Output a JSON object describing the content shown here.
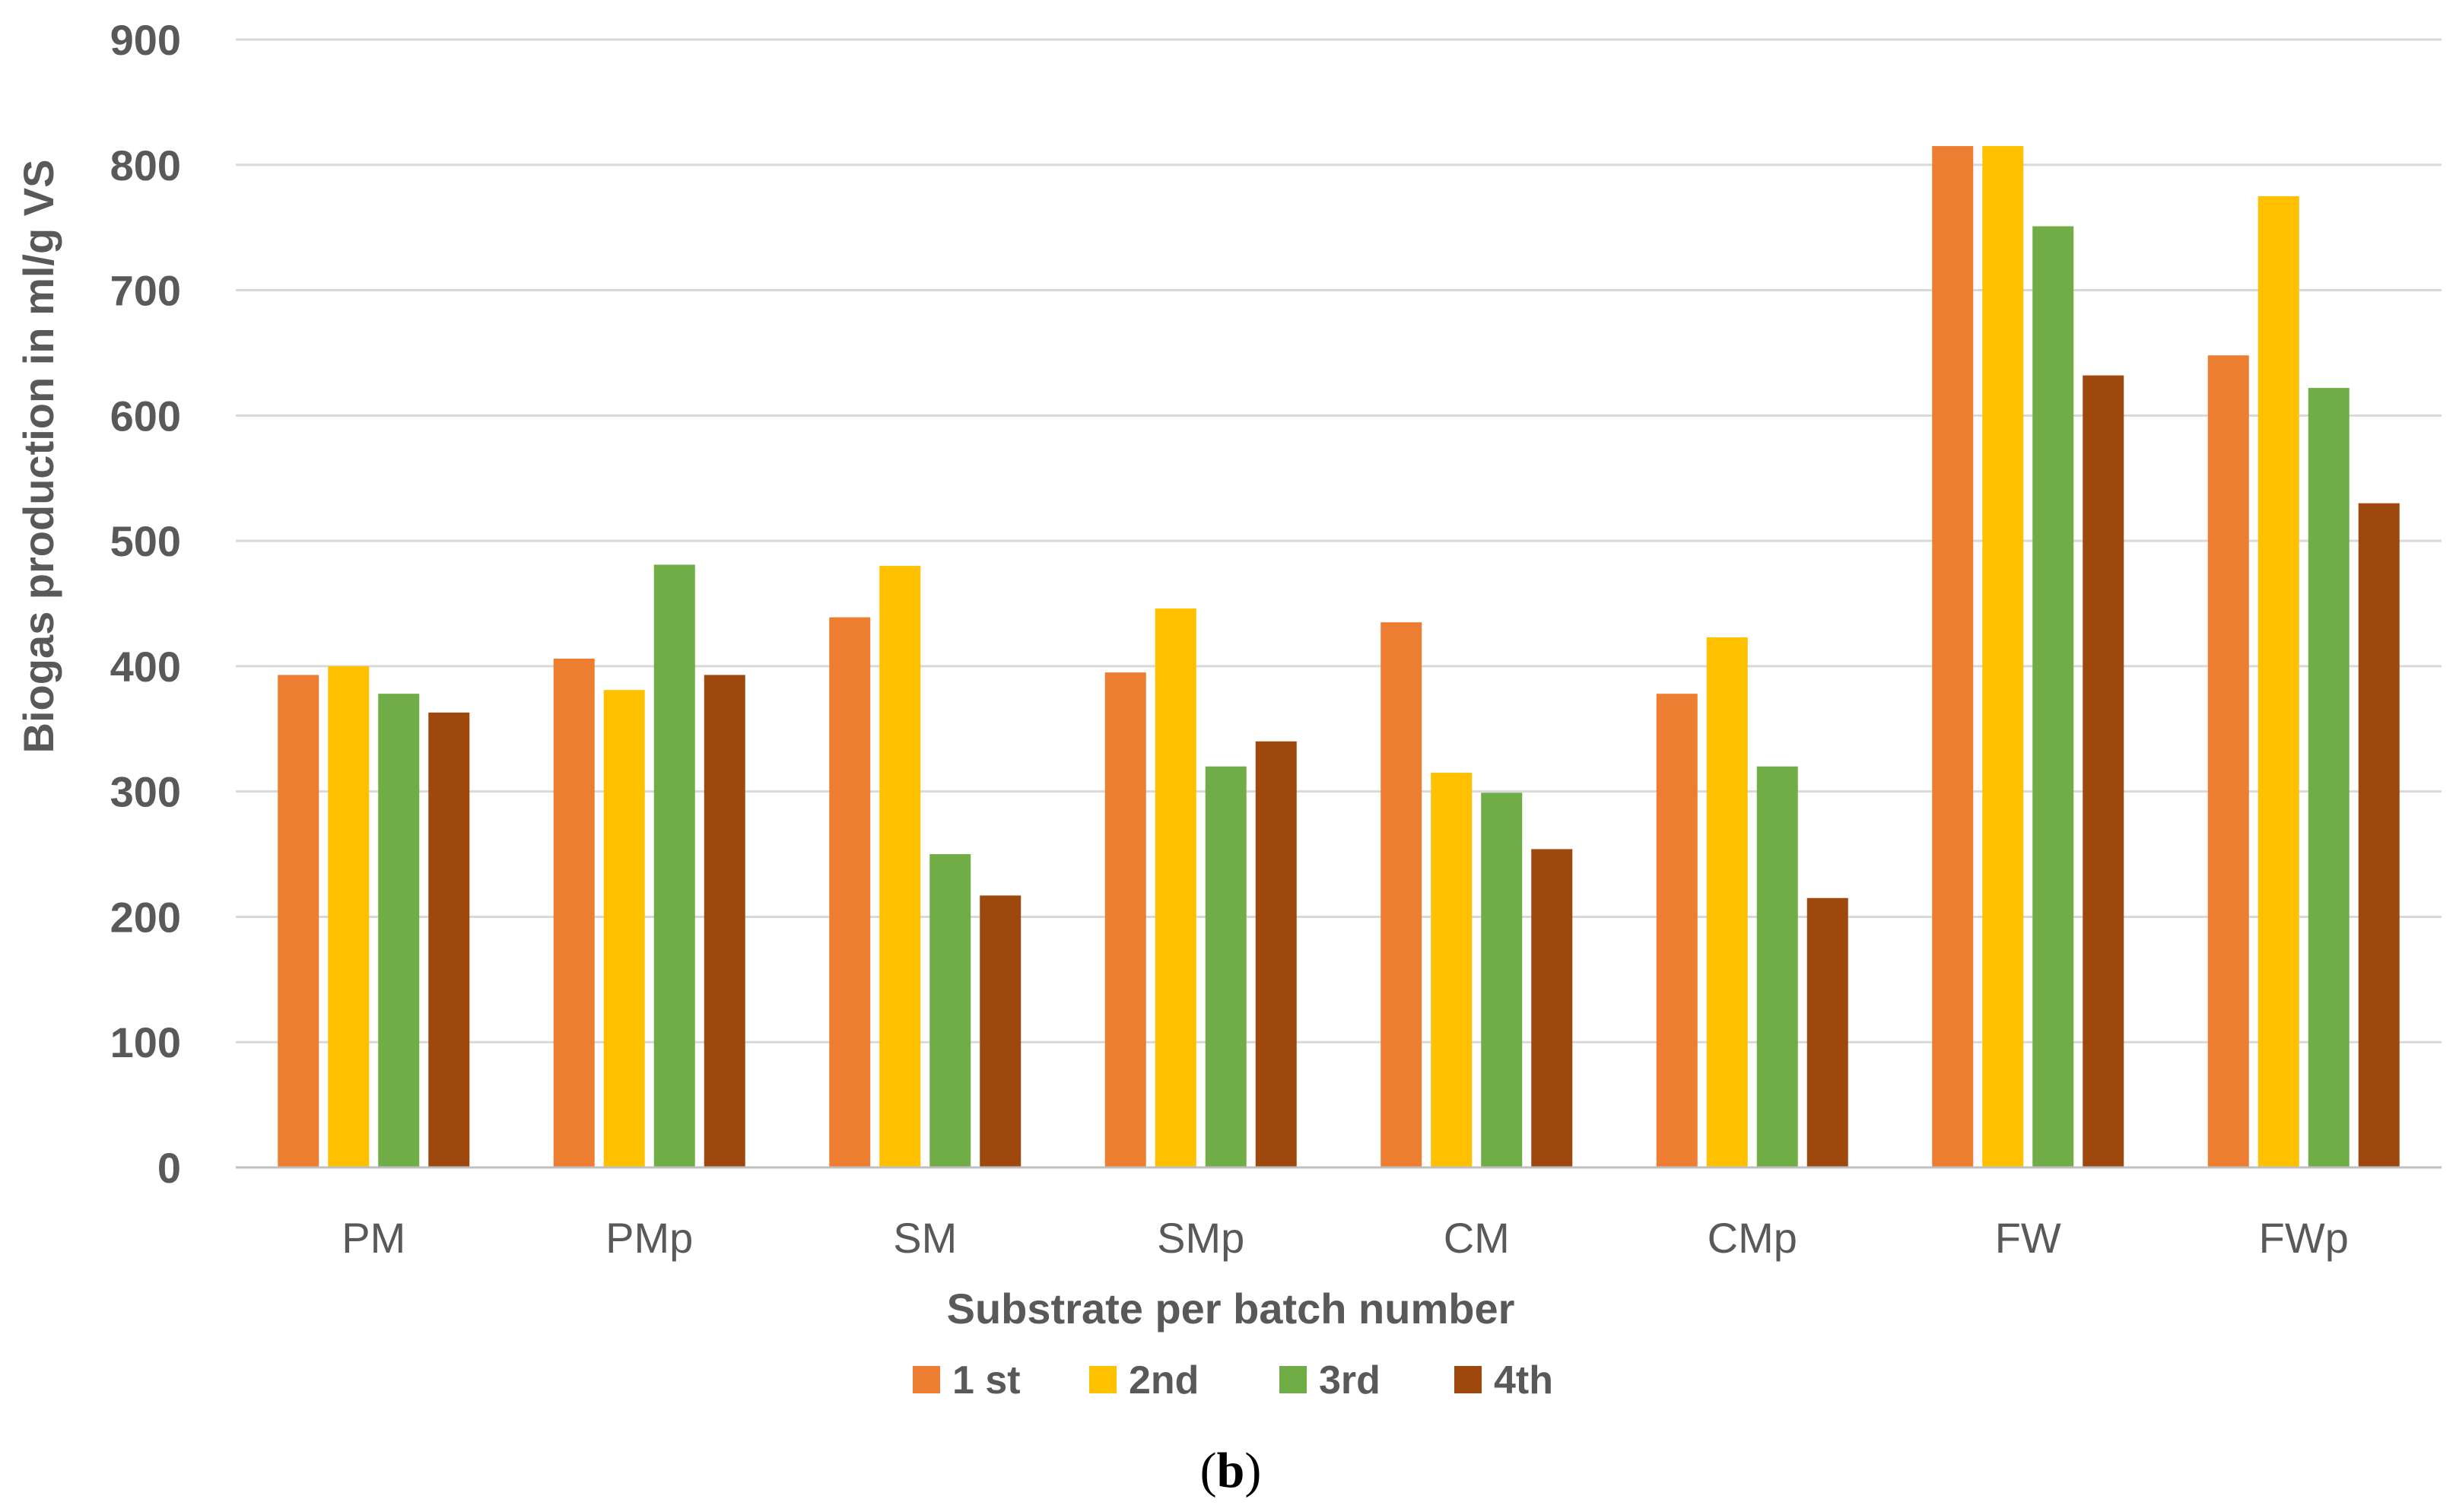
{
  "chart_data": {
    "type": "bar",
    "title": "",
    "xlabel": "Substrate per batch number",
    "ylabel": "Biogas production in ml/g VS",
    "ylim": [
      0,
      900
    ],
    "yticks": [
      0,
      100,
      200,
      300,
      400,
      500,
      600,
      700,
      800,
      900
    ],
    "ytick_labels": [
      "0",
      "100",
      "200",
      "300",
      "400",
      "500",
      "600",
      "700",
      "800",
      "900"
    ],
    "grid": true,
    "legend_position": "bottom",
    "categories": [
      "PM",
      "PMp",
      "SM",
      "SMp",
      "CM",
      "CMp",
      "FW",
      "FWp"
    ],
    "series": [
      {
        "name": "1 st",
        "color": "#ED7D31",
        "values": [
          393,
          406,
          439,
          395,
          435,
          378,
          815,
          648
        ]
      },
      {
        "name": "2nd",
        "color": "#FFC000",
        "values": [
          400,
          381,
          480,
          446,
          315,
          423,
          815,
          775
        ]
      },
      {
        "name": "3rd",
        "color": "#70AD47",
        "values": [
          378,
          481,
          250,
          320,
          299,
          320,
          751,
          622
        ]
      },
      {
        "name": "4th",
        "color": "#9E480E",
        "values": [
          363,
          393,
          217,
          340,
          254,
          215,
          632,
          530
        ]
      }
    ],
    "gridline_color": "#D9D9D9",
    "axis_color": "#BFBFBF"
  },
  "caption": {
    "open": "(",
    "letter": "b",
    "close": ")"
  }
}
